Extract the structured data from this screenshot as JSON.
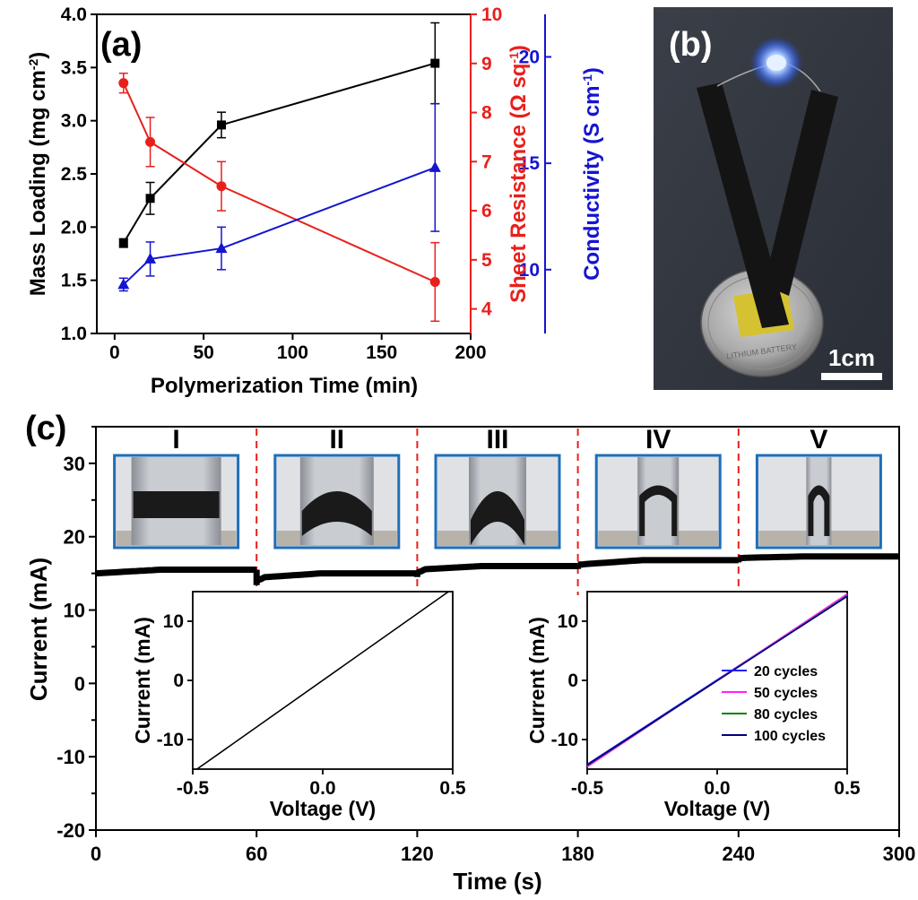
{
  "chart_data": [
    {
      "panel": "(a)",
      "type": "line",
      "xlabel": "Polymerization Time (min)",
      "xlim": [
        -10,
        200
      ],
      "xticks": [
        0,
        50,
        100,
        150,
        200
      ],
      "axes": {
        "left": {
          "label_main": "Mass Loading (mg cm",
          "label_sup": "-2",
          "label_end": ")",
          "lim": [
            1.0,
            4.0
          ],
          "ticks": [
            "1.0",
            "1.5",
            "2.0",
            "2.5",
            "3.0",
            "3.5",
            "4.0"
          ],
          "color": "#000000"
        },
        "right1": {
          "label_main": "Sheet Resistance (Ω sq",
          "label_sup": "-1",
          "label_end": ")",
          "lim": [
            3.5,
            10
          ],
          "ticks": [
            "4",
            "5",
            "6",
            "7",
            "8",
            "9",
            "10"
          ],
          "color": "#e8201c"
        },
        "right2": {
          "label_main": "Conductivity (S cm",
          "label_sup": "-1",
          "label_end": ")",
          "lim": [
            7,
            22
          ],
          "ticks": [
            "10",
            "15",
            "20"
          ],
          "color": "#1414d2"
        }
      },
      "series": [
        {
          "name": "Mass Loading",
          "axis": "left",
          "color": "#000000",
          "marker": "square",
          "x": [
            5,
            20,
            60,
            180
          ],
          "values": [
            1.85,
            2.27,
            2.96,
            3.54
          ],
          "err": [
            0.04,
            0.15,
            0.12,
            0.38
          ]
        },
        {
          "name": "Sheet Resistance",
          "axis": "right1",
          "color": "#e8201c",
          "marker": "circle",
          "x": [
            5,
            20,
            60,
            180
          ],
          "values": [
            8.6,
            7.4,
            6.5,
            4.55
          ],
          "err": [
            0.2,
            0.5,
            0.5,
            0.8
          ]
        },
        {
          "name": "Conductivity",
          "axis": "right2",
          "color": "#1414d2",
          "marker": "triangle",
          "x": [
            5,
            20,
            60,
            180
          ],
          "values": [
            9.3,
            10.5,
            11.0,
            14.8
          ],
          "err": [
            0.3,
            0.8,
            1.0,
            3.0
          ]
        }
      ]
    },
    {
      "panel": "(c)",
      "type": "line",
      "xlabel": "Time (s)",
      "ylabel": "Current (mA)",
      "xlim": [
        0,
        300
      ],
      "ylim": [
        -20,
        35
      ],
      "xticks": [
        "0",
        "60",
        "120",
        "180",
        "240",
        "300"
      ],
      "yticks": [
        "-20",
        "-10",
        "0",
        "10",
        "20",
        "30"
      ],
      "stage_labels": [
        "I",
        "II",
        "III",
        "IV",
        "V"
      ],
      "dividers_x": [
        60,
        120,
        180,
        240
      ],
      "series": [
        {
          "name": "Current",
          "color": "#000000",
          "segments": [
            {
              "x0": 0,
              "x1": 60,
              "y0": 15.0,
              "y1": 15.5,
              "dip": 13.6
            },
            {
              "x0": 60,
              "x1": 120,
              "y0": 14.4,
              "y1": 15.0,
              "dip": 14.0
            },
            {
              "x0": 120,
              "x1": 180,
              "y0": 15.5,
              "y1": 16.0,
              "dip": 15.1
            },
            {
              "x0": 180,
              "x1": 240,
              "y0": 16.2,
              "y1": 16.8,
              "dip": 16.2
            },
            {
              "x0": 240,
              "x1": 300,
              "y0": 17.1,
              "y1": 17.3,
              "dip": 17.1
            }
          ]
        }
      ],
      "insets": [
        {
          "xlabel": "Voltage (V)",
          "ylabel": "Current (mA)",
          "xlim": [
            -0.5,
            0.5
          ],
          "ylim": [
            -15,
            15
          ],
          "xticks": [
            "-0.5",
            "0.0",
            "0.5"
          ],
          "yticks": [
            "-10",
            "0",
            "10"
          ],
          "series": [
            {
              "name": "",
              "color": "#000000",
              "x": [
                -0.5,
                0.5
              ],
              "values": [
                -15.5,
                15.5
              ]
            }
          ]
        },
        {
          "xlabel": "Voltage (V)",
          "ylabel": "Current (mA)",
          "xlim": [
            -0.5,
            0.5
          ],
          "ylim": [
            -15,
            15
          ],
          "xticks": [
            "-0.5",
            "0.0",
            "0.5"
          ],
          "yticks": [
            "-10",
            "0",
            "10"
          ],
          "legend": "bottom-right",
          "series": [
            {
              "name": "20 cycles",
              "color": "#2020ff",
              "x": [
                -0.5,
                0.5
              ],
              "values": [
                -14.2,
                14.4
              ]
            },
            {
              "name": "50 cycles",
              "color": "#ff20ff",
              "x": [
                -0.5,
                0.5
              ],
              "values": [
                -14.6,
                14.6
              ]
            },
            {
              "name": "80 cycles",
              "color": "#008000",
              "x": [
                -0.5,
                0.5
              ],
              "values": [
                -14.4,
                14.3
              ]
            },
            {
              "name": "100 cycles",
              "color": "#000080",
              "x": [
                -0.5,
                0.5
              ],
              "values": [
                -14.3,
                14.2
              ]
            }
          ]
        }
      ]
    }
  ],
  "panel_b": {
    "label": "(b)",
    "battery_text": "LITHIUM BATTERY",
    "scale_text": "1cm"
  }
}
